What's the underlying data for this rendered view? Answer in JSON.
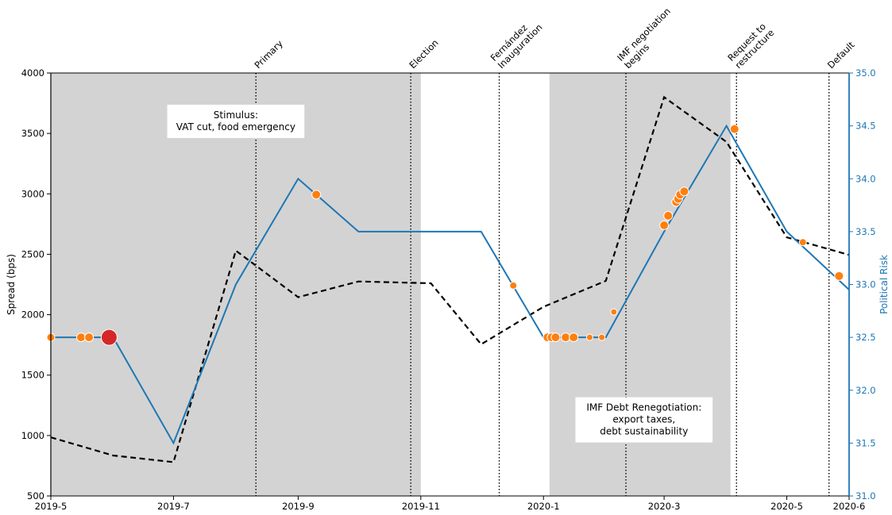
{
  "chart_data": {
    "type": "line",
    "xlabel": "",
    "ylabel": "Spread (bps)",
    "y2label": "Political Risk",
    "xlim": [
      "2019-05-01",
      "2020-06-01"
    ],
    "ylim": [
      500,
      4000
    ],
    "y2lim": [
      31.0,
      35.0
    ],
    "x_ticks": [
      "2019-05-01",
      "2019-07-01",
      "2019-09-01",
      "2019-11-01",
      "2020-01-01",
      "2020-03-01",
      "2020-05-01",
      "2020-06-01"
    ],
    "x_tick_labels": [
      "2019-5",
      "2019-7",
      "2019-9",
      "2019-11",
      "2020-1",
      "2020-3",
      "2020-5",
      "2020-6"
    ],
    "y_ticks": [
      500,
      1000,
      1500,
      2000,
      2500,
      3000,
      3500,
      4000
    ],
    "y2_ticks": [
      31.0,
      31.5,
      32.0,
      32.5,
      33.0,
      33.5,
      34.0,
      34.5,
      35.0
    ],
    "y2_tick_labels": [
      "31.0",
      "31.5",
      "32.0",
      "32.5",
      "33.0",
      "33.5",
      "34.0",
      "34.5",
      "35.0"
    ],
    "grid": false,
    "legend": "none",
    "colors": {
      "shade": "#d3d3d3",
      "spread": "#000000",
      "risk": "#1f77b4",
      "event_marker": "#ff7f0e",
      "highlight_marker": "#d62728"
    },
    "shaded_periods": [
      {
        "start": "2019-05-01",
        "end": "2019-11-01"
      },
      {
        "start": "2020-01-04",
        "end": "2020-04-03"
      }
    ],
    "events": [
      {
        "date": "2019-08-11",
        "label": "Primary"
      },
      {
        "date": "2019-10-27",
        "label": "Election"
      },
      {
        "date": "2019-12-10",
        "label": "Fernández\nInauguration"
      },
      {
        "date": "2020-02-11",
        "label": "IMF negotiation\nbegins"
      },
      {
        "date": "2020-04-06",
        "label": "Request to\nrestructure"
      },
      {
        "date": "2020-05-22",
        "label": "Default"
      }
    ],
    "annotations": [
      {
        "text": "Stimulus:\nVAT cut, food emergency",
        "date": "2019-08-01",
        "y": 3600
      },
      {
        "text": "IMF Debt Renegotiation:\nexport taxes,\ndebt sustainability",
        "date": "2020-02-20",
        "y": 1130
      }
    ],
    "series": [
      {
        "axis": "left",
        "style": "dashed",
        "x": [
          "2019-05-01",
          "2019-06-01",
          "2019-07-01",
          "2019-08-01",
          "2019-09-01",
          "2019-10-01",
          "2019-11-06",
          "2019-12-01",
          "2020-01-01",
          "2020-02-01",
          "2020-03-01",
          "2020-04-01",
          "2020-05-01",
          "2020-06-01"
        ],
        "values": [
          985,
          835,
          780,
          2530,
          2145,
          2275,
          2260,
          1755,
          2065,
          2280,
          3800,
          3430,
          2640,
          2495
        ]
      },
      {
        "axis": "right",
        "style": "solid",
        "x": [
          "2019-05-01",
          "2019-06-01",
          "2019-07-01",
          "2019-08-01",
          "2019-09-01",
          "2019-10-01",
          "2019-11-01",
          "2019-12-01",
          "2020-01-01",
          "2020-02-01",
          "2020-03-01",
          "2020-04-01",
          "2020-05-01",
          "2020-06-01"
        ],
        "values": [
          32.5,
          32.5,
          31.5,
          33.0,
          34.0,
          33.5,
          33.5,
          33.5,
          32.5,
          32.5,
          33.5,
          34.5,
          33.5,
          32.95
        ]
      },
      {
        "axis": "right",
        "style": "markers",
        "points": [
          {
            "x": "2019-05-01",
            "y": 32.5,
            "size": 5
          },
          {
            "x": "2019-05-16",
            "y": 32.5,
            "size": 5.5
          },
          {
            "x": "2019-05-20",
            "y": 32.5,
            "size": 5.5
          },
          {
            "x": "2019-05-30",
            "y": 32.5,
            "size": 10,
            "highlight": true
          },
          {
            "x": "2019-09-10",
            "y": 33.85,
            "size": 5.5
          },
          {
            "x": "2019-12-17",
            "y": 32.99,
            "size": 4.5
          },
          {
            "x": "2020-01-03",
            "y": 32.5,
            "size": 5.5
          },
          {
            "x": "2020-01-05",
            "y": 32.5,
            "size": 5.5
          },
          {
            "x": "2020-01-07",
            "y": 32.5,
            "size": 5.5
          },
          {
            "x": "2020-01-12",
            "y": 32.5,
            "size": 5.5
          },
          {
            "x": "2020-01-16",
            "y": 32.5,
            "size": 5.5
          },
          {
            "x": "2020-01-24",
            "y": 32.5,
            "size": 4
          },
          {
            "x": "2020-01-30",
            "y": 32.5,
            "size": 4
          },
          {
            "x": "2020-02-05",
            "y": 32.74,
            "size": 4
          },
          {
            "x": "2020-03-01",
            "y": 33.56,
            "size": 5.5
          },
          {
            "x": "2020-03-03",
            "y": 33.65,
            "size": 5.5
          },
          {
            "x": "2020-03-07",
            "y": 33.78,
            "size": 5.5
          },
          {
            "x": "2020-03-08",
            "y": 33.81,
            "size": 5.5
          },
          {
            "x": "2020-03-09",
            "y": 33.85,
            "size": 5.5
          },
          {
            "x": "2020-03-11",
            "y": 33.88,
            "size": 5.5
          },
          {
            "x": "2020-04-05",
            "y": 34.47,
            "size": 5.5
          },
          {
            "x": "2020-05-09",
            "y": 33.4,
            "size": 4.5
          },
          {
            "x": "2020-05-27",
            "y": 33.08,
            "size": 5.5
          }
        ]
      }
    ]
  }
}
